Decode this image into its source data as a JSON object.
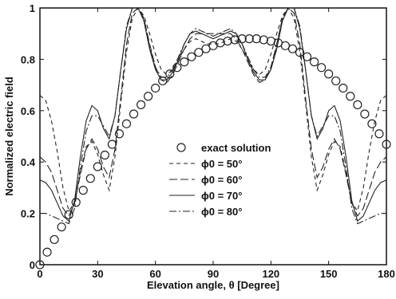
{
  "chart_data": {
    "type": "line",
    "xlabel": "Elevation angle, θ [Degree]",
    "ylabel": "Normalized electric field",
    "xlim": [
      0,
      180
    ],
    "ylim": [
      0,
      1
    ],
    "xticks": [
      0,
      30,
      60,
      90,
      120,
      150,
      180
    ],
    "yticks": [
      0,
      0.2,
      0.4,
      0.6,
      0.8,
      1
    ],
    "ytick_labels": [
      "0",
      "0.2",
      "0.4",
      "0.6",
      "0.8",
      "1"
    ],
    "grid": false,
    "legend_position": "center",
    "series": [
      {
        "name": "exact solution",
        "style": "circles",
        "x": [
          0,
          3.75,
          7.5,
          11.25,
          15,
          18.75,
          22.5,
          26.25,
          30,
          33.75,
          37.5,
          41.25,
          45,
          48.75,
          52.5,
          56.25,
          60,
          63.75,
          67.5,
          71.25,
          75,
          78.75,
          82.5,
          86.25,
          90,
          93.75,
          97.5,
          101.25,
          105,
          108.75,
          112.5,
          116.25,
          120,
          123.75,
          127.5,
          131.25,
          135,
          138.75,
          142.5,
          146.25,
          150,
          153.75,
          157.5,
          161.25,
          165,
          168.75,
          172.5,
          176.25,
          180
        ],
        "y": [
          0,
          0.049,
          0.098,
          0.147,
          0.195,
          0.243,
          0.29,
          0.336,
          0.382,
          0.427,
          0.469,
          0.51,
          0.549,
          0.587,
          0.623,
          0.656,
          0.688,
          0.716,
          0.743,
          0.768,
          0.79,
          0.81,
          0.827,
          0.841,
          0.853,
          0.864,
          0.871,
          0.876,
          0.88,
          0.88,
          0.88,
          0.876,
          0.871,
          0.864,
          0.853,
          0.841,
          0.827,
          0.81,
          0.79,
          0.768,
          0.743,
          0.716,
          0.688,
          0.656,
          0.623,
          0.587,
          0.549,
          0.51,
          0.469
        ]
      },
      {
        "name": "ϕ0 = 50°",
        "style": "dashed",
        "x": [
          0,
          3,
          6,
          9,
          12,
          15,
          18,
          21,
          24,
          27,
          30,
          33,
          36,
          39,
          42,
          45,
          48,
          51,
          54,
          57,
          60,
          63,
          66,
          69,
          72,
          75,
          78,
          81,
          84,
          87,
          90,
          93,
          96,
          99,
          102,
          105,
          108,
          111,
          114,
          117,
          120,
          123,
          126,
          129,
          132,
          135,
          138,
          141,
          144,
          147,
          150,
          153,
          156,
          159,
          162,
          165,
          168,
          171,
          174,
          177,
          180
        ],
        "y": [
          0.66,
          0.64,
          0.56,
          0.44,
          0.3,
          0.21,
          0.24,
          0.36,
          0.46,
          0.48,
          0.43,
          0.35,
          0.29,
          0.42,
          0.63,
          0.83,
          0.96,
          1.0,
          0.97,
          0.9,
          0.82,
          0.76,
          0.74,
          0.76,
          0.8,
          0.84,
          0.87,
          0.88,
          0.87,
          0.86,
          0.86,
          0.86,
          0.87,
          0.88,
          0.87,
          0.84,
          0.8,
          0.76,
          0.74,
          0.76,
          0.82,
          0.9,
          0.97,
          1.0,
          0.96,
          0.83,
          0.63,
          0.42,
          0.29,
          0.35,
          0.43,
          0.48,
          0.46,
          0.36,
          0.24,
          0.21,
          0.3,
          0.44,
          0.56,
          0.64,
          0.66
        ]
      },
      {
        "name": "ϕ0 = 60°",
        "style": "longdash",
        "x": [
          0,
          3,
          6,
          9,
          12,
          15,
          18,
          21,
          24,
          27,
          30,
          33,
          36,
          39,
          42,
          45,
          48,
          51,
          54,
          57,
          60,
          63,
          66,
          69,
          72,
          75,
          78,
          81,
          84,
          87,
          90,
          93,
          96,
          99,
          102,
          105,
          108,
          111,
          114,
          117,
          120,
          123,
          126,
          129,
          132,
          135,
          138,
          141,
          144,
          147,
          150,
          153,
          156,
          159,
          162,
          165,
          168,
          171,
          174,
          177,
          180
        ],
        "y": [
          0.42,
          0.4,
          0.36,
          0.29,
          0.22,
          0.19,
          0.24,
          0.35,
          0.45,
          0.49,
          0.45,
          0.38,
          0.34,
          0.45,
          0.65,
          0.86,
          0.98,
          1.0,
          0.96,
          0.86,
          0.77,
          0.72,
          0.71,
          0.74,
          0.79,
          0.84,
          0.88,
          0.9,
          0.9,
          0.9,
          0.9,
          0.9,
          0.9,
          0.9,
          0.88,
          0.84,
          0.79,
          0.74,
          0.71,
          0.72,
          0.77,
          0.86,
          0.96,
          1.0,
          0.98,
          0.86,
          0.65,
          0.45,
          0.34,
          0.38,
          0.45,
          0.49,
          0.45,
          0.35,
          0.24,
          0.19,
          0.22,
          0.29,
          0.36,
          0.4,
          0.42
        ]
      },
      {
        "name": "ϕ0 = 70°",
        "style": "solid",
        "x": [
          0,
          3,
          6,
          9,
          12,
          15,
          18,
          21,
          24,
          27,
          30,
          33,
          36,
          39,
          42,
          45,
          48,
          51,
          54,
          57,
          60,
          63,
          66,
          69,
          72,
          75,
          78,
          81,
          84,
          87,
          90,
          93,
          96,
          99,
          102,
          105,
          108,
          111,
          114,
          117,
          120,
          123,
          126,
          129,
          132,
          135,
          138,
          141,
          144,
          147,
          150,
          153,
          156,
          159,
          162,
          165,
          168,
          171,
          174,
          177,
          180
        ],
        "y": [
          0.33,
          0.32,
          0.29,
          0.24,
          0.19,
          0.17,
          0.25,
          0.42,
          0.56,
          0.62,
          0.6,
          0.53,
          0.49,
          0.58,
          0.76,
          0.92,
          1.0,
          1.0,
          0.95,
          0.84,
          0.76,
          0.72,
          0.72,
          0.75,
          0.8,
          0.86,
          0.9,
          0.91,
          0.9,
          0.89,
          0.88,
          0.89,
          0.9,
          0.91,
          0.9,
          0.86,
          0.8,
          0.75,
          0.72,
          0.72,
          0.76,
          0.84,
          0.95,
          1.0,
          1.0,
          0.92,
          0.76,
          0.58,
          0.49,
          0.53,
          0.6,
          0.62,
          0.56,
          0.42,
          0.25,
          0.17,
          0.19,
          0.24,
          0.29,
          0.32,
          0.33
        ]
      },
      {
        "name": "ϕ0 = 80°",
        "style": "dashdot",
        "x": [
          0,
          3,
          6,
          9,
          12,
          15,
          18,
          21,
          24,
          27,
          30,
          33,
          36,
          39,
          42,
          45,
          48,
          51,
          54,
          57,
          60,
          63,
          66,
          69,
          72,
          75,
          78,
          81,
          84,
          87,
          90,
          93,
          96,
          99,
          102,
          105,
          108,
          111,
          114,
          117,
          120,
          123,
          126,
          129,
          132,
          135,
          138,
          141,
          144,
          147,
          150,
          153,
          156,
          159,
          162,
          165,
          168,
          171,
          174,
          177,
          180
        ],
        "y": [
          0.2,
          0.2,
          0.19,
          0.18,
          0.17,
          0.16,
          0.22,
          0.38,
          0.52,
          0.58,
          0.58,
          0.54,
          0.5,
          0.58,
          0.76,
          0.93,
          1.0,
          1.0,
          0.96,
          0.85,
          0.77,
          0.73,
          0.73,
          0.76,
          0.81,
          0.86,
          0.9,
          0.92,
          0.91,
          0.9,
          0.89,
          0.9,
          0.91,
          0.92,
          0.9,
          0.86,
          0.81,
          0.76,
          0.73,
          0.73,
          0.77,
          0.85,
          0.96,
          1.0,
          1.0,
          0.93,
          0.76,
          0.58,
          0.5,
          0.54,
          0.58,
          0.58,
          0.52,
          0.38,
          0.22,
          0.16,
          0.17,
          0.18,
          0.19,
          0.2,
          0.2
        ]
      }
    ]
  }
}
